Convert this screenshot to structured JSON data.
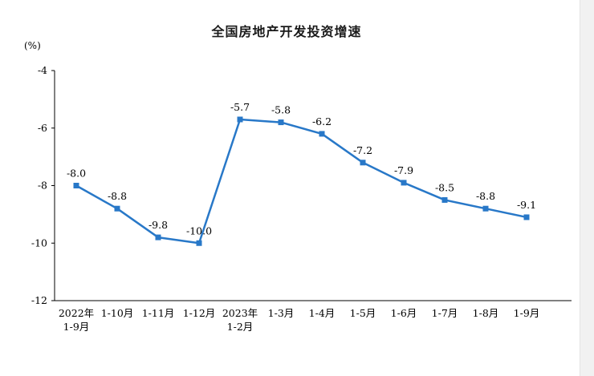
{
  "chart_data": {
    "type": "line",
    "title": "全国房地产开发投资增速",
    "unit_label": "(%)",
    "categories": [
      "2022年\n1-9月",
      "1-10月",
      "1-11月",
      "1-12月",
      "2023年\n1-2月",
      "1-3月",
      "1-4月",
      "1-5月",
      "1-6月",
      "1-7月",
      "1-8月",
      "1-9月"
    ],
    "values": [
      -8.0,
      -8.8,
      -9.8,
      -10.0,
      -5.7,
      -5.8,
      -6.2,
      -7.2,
      -7.9,
      -8.5,
      -8.8,
      -9.1
    ],
    "data_labels": [
      "-8.0",
      "-8.8",
      "-9.8",
      "-10.0",
      "-5.7",
      "-5.8",
      "-6.2",
      "-7.2",
      "-7.9",
      "-8.5",
      "-8.8",
      "-9.1"
    ],
    "ylim": [
      -12,
      -4
    ],
    "yticks": [
      -4,
      -6,
      -8,
      -10,
      -12
    ],
    "line_color": "#2878c8",
    "axis_color": "#000000",
    "text_color": "#000000",
    "grid": false,
    "legend": "none",
    "marker": "square"
  }
}
